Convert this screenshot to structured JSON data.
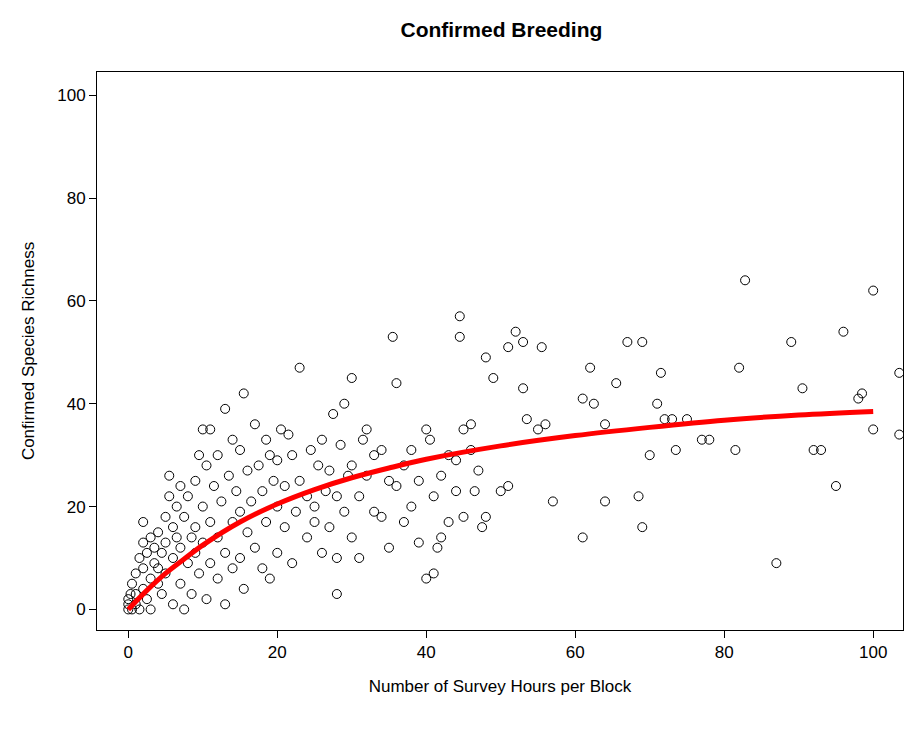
{
  "chart_data": {
    "type": "scatter",
    "title": "Confirmed Breeding",
    "x_label": "Number of Survey Hours per Block",
    "y_label": "Confirmed Species Richness",
    "xlim": [
      -4.2,
      104
    ],
    "ylim": [
      -4,
      104.5
    ],
    "xticks": [
      0,
      20,
      40,
      60,
      80,
      100
    ],
    "yticks": [
      0,
      20,
      40,
      60,
      80,
      100
    ],
    "grid": false,
    "series": [
      {
        "type": "scatter",
        "color": "#000000",
        "marker": "circle-open",
        "x": [
          0,
          0,
          0,
          0.3,
          0.5,
          0.5,
          1,
          1,
          1,
          1.5,
          1.5,
          2,
          2,
          2,
          2,
          2.5,
          2.5,
          3,
          3,
          3,
          3.5,
          3.5,
          4,
          4,
          4,
          4.5,
          4.5,
          5,
          5,
          5,
          5.5,
          5.5,
          6,
          6,
          6,
          6.5,
          6.5,
          7,
          7,
          7,
          7.5,
          7.5,
          8,
          8,
          8.5,
          8.5,
          9,
          9,
          9,
          9.5,
          9.5,
          10,
          10,
          10,
          10.5,
          10.5,
          11,
          11,
          11,
          11.5,
          12,
          12,
          12,
          12.5,
          13,
          13,
          13,
          13.5,
          14,
          14,
          14,
          14.5,
          15,
          15,
          15,
          15.5,
          15.5,
          16,
          16,
          16.5,
          17,
          17,
          17.5,
          18,
          18,
          18.5,
          18.5,
          19,
          19,
          19.5,
          20,
          20,
          20,
          20.5,
          21,
          21,
          21.5,
          22,
          22,
          22.5,
          23,
          23,
          24,
          24,
          24.5,
          25,
          25,
          25.5,
          26,
          26,
          26.5,
          27,
          27,
          27.5,
          28,
          28,
          28,
          28.5,
          29,
          29,
          29.5,
          30,
          30,
          30,
          31,
          31,
          31.5,
          32,
          32,
          33,
          33,
          34,
          34,
          35,
          35,
          35.5,
          36,
          36,
          37,
          37,
          38,
          38,
          39,
          39,
          40,
          40,
          40.5,
          41,
          41,
          41.5,
          42,
          42,
          43,
          43,
          44,
          44,
          44.5,
          44.5,
          45,
          45,
          46,
          46,
          46.5,
          47,
          47.5,
          48,
          48,
          49,
          50,
          51,
          51,
          52,
          53,
          53.5,
          53,
          55,
          55.5,
          56,
          57,
          61,
          61,
          62,
          62.5,
          64,
          64,
          65.5,
          67,
          68.5,
          69,
          69,
          70,
          71,
          71.5,
          72,
          73,
          73.5,
          75,
          77,
          78,
          81.5,
          82,
          82.8,
          87,
          89,
          90.5,
          92,
          93,
          95,
          96,
          98,
          98.5,
          100,
          100,
          103.5,
          103.5
        ],
        "values": [
          0,
          1,
          2,
          3,
          0,
          5,
          1,
          7,
          3,
          0,
          10,
          4,
          8,
          17,
          13,
          2,
          11,
          6,
          14,
          0,
          9,
          12,
          5,
          15,
          8,
          11,
          3,
          13,
          18,
          7,
          26,
          22,
          10,
          16,
          1,
          14,
          20,
          12,
          24,
          5,
          0,
          18,
          22,
          9,
          14,
          3,
          16,
          25,
          11,
          30,
          7,
          35,
          20,
          13,
          28,
          2,
          35,
          17,
          9,
          24,
          30,
          14,
          6,
          21,
          39,
          11,
          1,
          26,
          33,
          17,
          8,
          23,
          31,
          19,
          10,
          42,
          4,
          27,
          15,
          21,
          36,
          12,
          28,
          23,
          8,
          33,
          17,
          30,
          6,
          25,
          29,
          20,
          11,
          35,
          16,
          24,
          34,
          30,
          9,
          19,
          47,
          25,
          14,
          22,
          31,
          20,
          17,
          28,
          33,
          11,
          23,
          16,
          27,
          38,
          3,
          10,
          22,
          32,
          40,
          19,
          26,
          45,
          28,
          14,
          22,
          10,
          33,
          35,
          26,
          19,
          30,
          18,
          31,
          25,
          12,
          53,
          44,
          24,
          17,
          28,
          20,
          31,
          25,
          13,
          35,
          6,
          33,
          7,
          22,
          12,
          26,
          14,
          30,
          17,
          29,
          23,
          57,
          53,
          18,
          35,
          36,
          31,
          23,
          27,
          16,
          49,
          18,
          45,
          23,
          24,
          51,
          54,
          52,
          37,
          43,
          35,
          51,
          36,
          21,
          41,
          14,
          47,
          40,
          36,
          21,
          44,
          52,
          22,
          52,
          16,
          30,
          40,
          46,
          37,
          37,
          31,
          37,
          33,
          33,
          31,
          47,
          64,
          9,
          52,
          43,
          31,
          31,
          24,
          54,
          41,
          42,
          62,
          35,
          46,
          34
        ]
      },
      {
        "type": "line",
        "color": "#ff0000",
        "line_style": "solid",
        "x": [
          0,
          2.5,
          5,
          7.5,
          10,
          15,
          20,
          25,
          30,
          35,
          40,
          50,
          60,
          70,
          80,
          90,
          100
        ],
        "values": [
          0,
          3.7,
          7,
          9.8,
          12.5,
          17,
          20.5,
          23.3,
          25.6,
          27.5,
          29.2,
          31.8,
          33.8,
          35.4,
          36.8,
          37.8,
          38.5
        ]
      }
    ]
  }
}
